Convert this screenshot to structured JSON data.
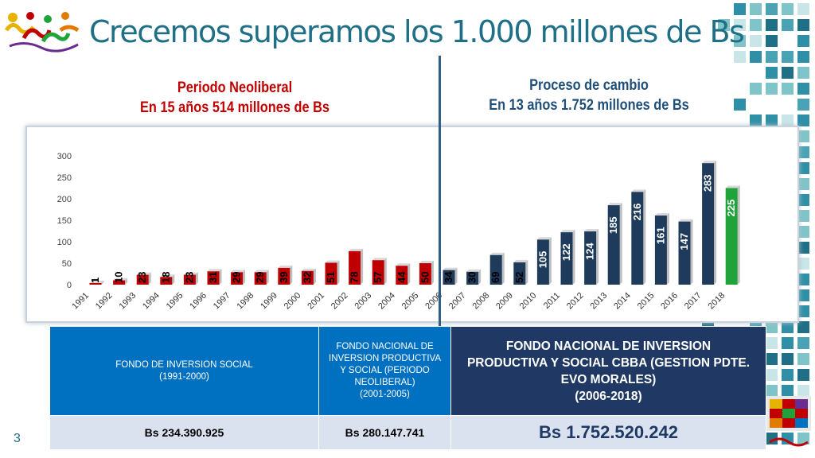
{
  "slide": {
    "title": "Crecemos superamos los 1.000 millones de Bs",
    "page_number": "3"
  },
  "headers": {
    "left_line1": "Periodo Neoliberal",
    "left_line2": "En 15 años 514 millones de Bs",
    "right_line1": "Proceso de cambio",
    "right_line2": "En 13 años 1.752 millones de Bs"
  },
  "colors": {
    "red_bar": "#c00000",
    "navy_bar": "#1f3b5c",
    "green_bar": "#1fa33a",
    "title": "#1f6f86"
  },
  "chart_data": {
    "type": "bar",
    "categories": [
      "1991",
      "1992",
      "1993",
      "1994",
      "1995",
      "1996",
      "1997",
      "1998",
      "1999",
      "2000",
      "2001",
      "2002",
      "2003",
      "2004",
      "2005",
      "2006",
      "2007",
      "2008",
      "2009",
      "2010",
      "2011",
      "2012",
      "2013",
      "2014",
      "2015",
      "2016",
      "2017",
      "2018"
    ],
    "values": [
      1,
      10,
      23,
      18,
      23,
      31,
      29,
      29,
      39,
      32,
      51,
      78,
      57,
      44,
      50,
      34,
      30,
      69,
      52,
      105,
      122,
      124,
      185,
      216,
      161,
      147,
      283,
      225
    ],
    "yticks": [
      "0",
      "50",
      "100",
      "150",
      "200",
      "250",
      "300"
    ],
    "ylim": [
      0,
      300
    ],
    "bar_colors": [
      "red",
      "red",
      "red",
      "red",
      "red",
      "red",
      "red",
      "red",
      "red",
      "red",
      "red",
      "red",
      "red",
      "red",
      "red",
      "navy",
      "navy",
      "navy",
      "navy",
      "navy",
      "navy",
      "navy",
      "navy",
      "navy",
      "navy",
      "navy",
      "navy",
      "green"
    ]
  },
  "table": {
    "col1_line1": "FONDO DE INVERSION SOCIAL",
    "col1_line2": "(1991-2000)",
    "col2_line1": "FONDO NACIONAL DE",
    "col2_line2": "INVERSION PRODUCTIVA",
    "col2_line3": "Y SOCIAL (PERIODO",
    "col2_line4": "NEOLIBERAL)",
    "col2_line5": "(2001-2005)",
    "col3_line1": "FONDO NACIONAL DE INVERSION",
    "col3_line2": "PRODUCTIVA Y SOCIAL CBBA (GESTION PDTE.",
    "col3_line3": "EVO MORALES)",
    "col3_line4": "(2006-2018)",
    "val1": "Bs 234.390.925",
    "val2": "Bs 280.147.741",
    "val3": "Bs 1.752.520.242"
  }
}
